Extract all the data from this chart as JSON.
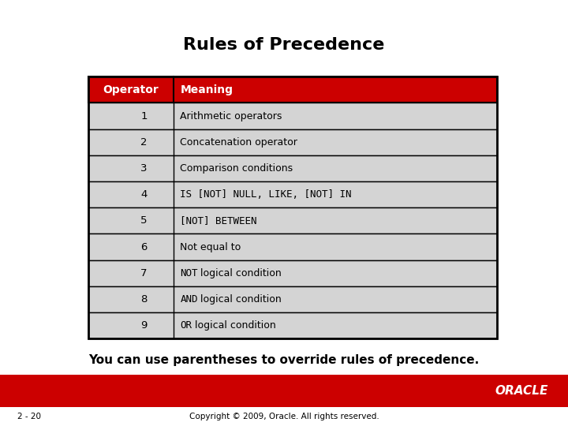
{
  "title": "Rules of Precedence",
  "title_fontsize": 16,
  "header": [
    "Operator",
    "Meaning"
  ],
  "rows": [
    [
      "1",
      "Arithmetic operators",
      false
    ],
    [
      "2",
      "Concatenation operator",
      false
    ],
    [
      "3",
      "Comparison conditions",
      false
    ],
    [
      "4",
      "IS [NOT] NULL, LIKE, [NOT] IN",
      true
    ],
    [
      "5",
      "[NOT] BETWEEN",
      true
    ],
    [
      "6",
      "Not equal to",
      false
    ],
    [
      "7",
      "NOT logical condition",
      true
    ],
    [
      "8",
      "AND logical condition",
      true
    ],
    [
      "9",
      "OR logical condition",
      true
    ]
  ],
  "mono_prefixes": {
    "7": "NOT",
    "8": "AND",
    "9": "OR"
  },
  "header_bg": "#CC0000",
  "header_fg": "#FFFFFF",
  "row_bg": "#D4D4D4",
  "border_color": "#000000",
  "note_text": "You can use parentheses to override rules of precedence.",
  "note_fontsize": 11,
  "footer_bar_color": "#CC0000",
  "footer_text_left": "2 - 20",
  "footer_text_center": "Copyright © 2009, Oracle. All rights reserved.",
  "footer_oracle": "ORACLE",
  "bg_color": "#FFFFFF"
}
